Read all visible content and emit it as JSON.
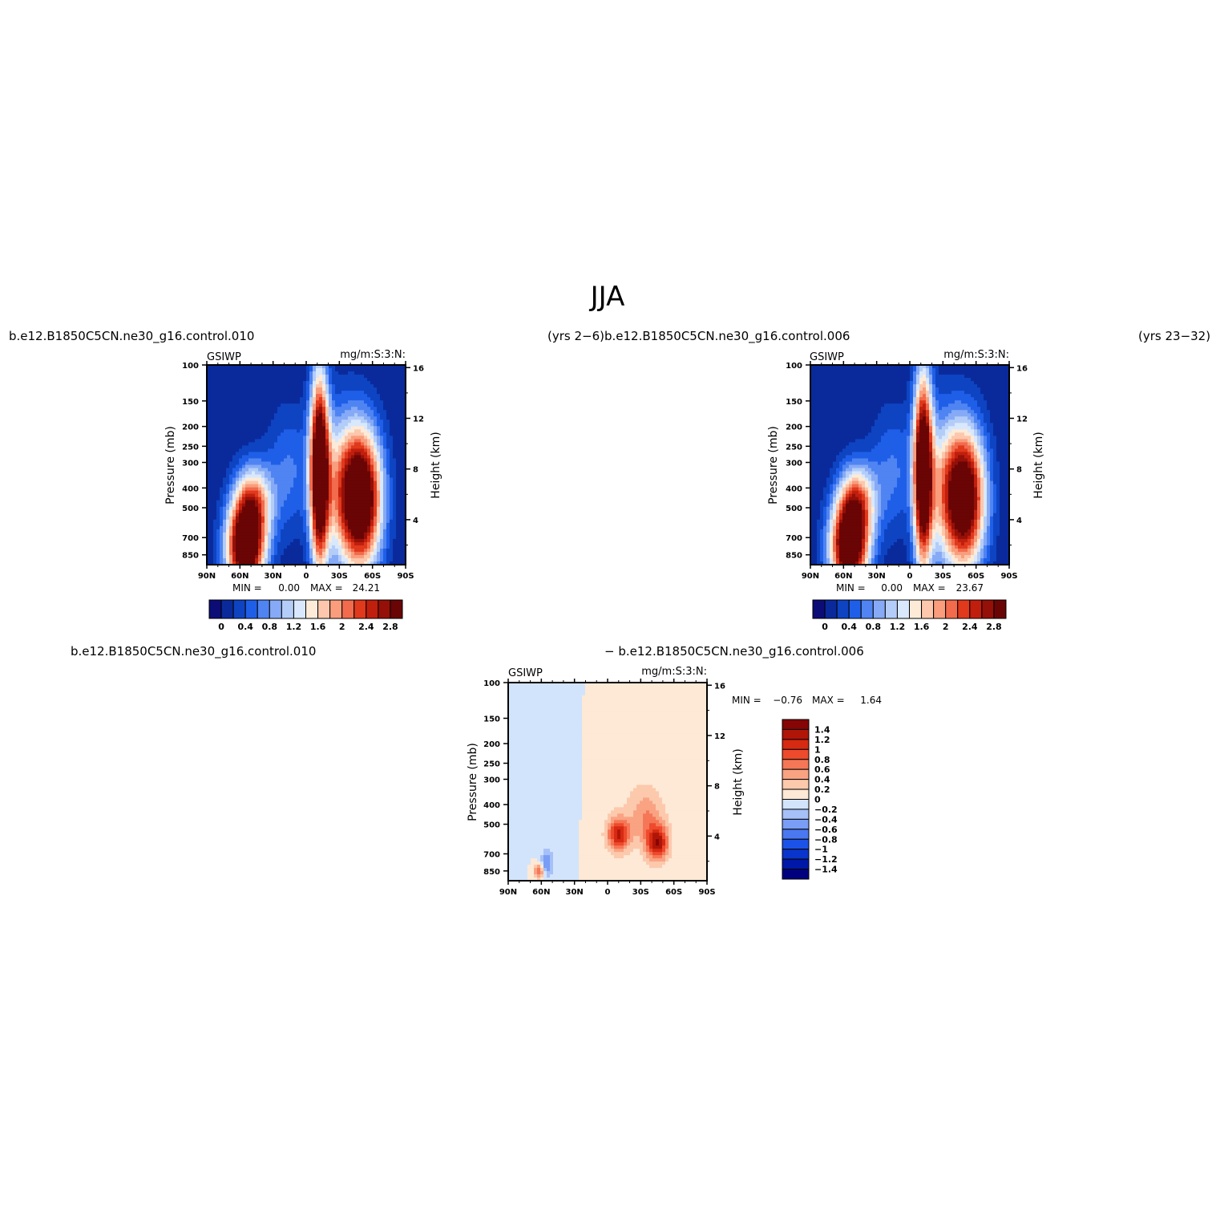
{
  "title": "JJA",
  "colors": {
    "seq": [
      "#0c0c77",
      "#0a2a9c",
      "#0e44c2",
      "#1f5fe8",
      "#4f84f2",
      "#86aaf6",
      "#b4cdf8",
      "#d9e8fc",
      "#fdebd8",
      "#fcc7ac",
      "#f99d7c",
      "#f16b4c",
      "#e0391c",
      "#c01f0e",
      "#951008",
      "#6a0505"
    ],
    "diff": [
      "#00007f",
      "#0018a8",
      "#0a35cc",
      "#1d52e8",
      "#4a78f0",
      "#7a9df5",
      "#a6c0f8",
      "#d2e4fc",
      "#fde9d5",
      "#fcc9ad",
      "#f9a383",
      "#f57757",
      "#ee4a2c",
      "#d62a12",
      "#b01508",
      "#860505"
    ],
    "background": "#0a2a9c"
  },
  "chart_data": [
    {
      "type": "heatmap",
      "panel": "top-left",
      "left_title": "b.e12.B1850C5CN.ne30_g16.control.010",
      "right_title": "(yrs 2−6)",
      "variable": "GSIWP",
      "units": "mg/m:S:3:N:",
      "xlabel": "",
      "ylabel": "Pressure (mb)",
      "y2label": "Height (km)",
      "x_ticks": [
        "90N",
        "60N",
        "30N",
        "0",
        "30S",
        "60S",
        "90S"
      ],
      "y_ticks": [
        "100",
        "150",
        "200",
        "250",
        "300",
        "400",
        "500",
        "700",
        "850"
      ],
      "y2_ticks": [
        "16",
        "12",
        "8",
        "4"
      ],
      "min_label": "MIN =",
      "min_value": "0.00",
      "max_label": "MAX =",
      "max_value": "24.21",
      "colorbar": {
        "orientation": "horizontal",
        "labels": [
          "0",
          "0.4",
          "0.8",
          "1.2",
          "1.6",
          "2",
          "2.4",
          "2.8"
        ],
        "levels": [
          0,
          0.2,
          0.4,
          0.6,
          0.8,
          1,
          1.2,
          1.4,
          1.6,
          1.8,
          2,
          2.2,
          2.4,
          2.6,
          2.8
        ]
      },
      "features": [
        {
          "lat": -50,
          "p": 450,
          "amp": 3.6,
          "wlat": 13,
          "wp": 0.55
        },
        {
          "lat": -12,
          "p": 330,
          "amp": 3.8,
          "wlat": 6,
          "wp": 0.75
        },
        {
          "lat": 55,
          "p": 790,
          "amp": 3.6,
          "wlat": 12,
          "wp": 0.35
        },
        {
          "lat": 48,
          "p": 470,
          "amp": 1.8,
          "wlat": 12,
          "wp": 0.3
        },
        {
          "lat": -30,
          "p": 400,
          "amp": 1.2,
          "wlat": 12,
          "wp": 0.6
        },
        {
          "lat": 15,
          "p": 330,
          "amp": 0.6,
          "wlat": 15,
          "wp": 0.5
        }
      ]
    },
    {
      "type": "heatmap",
      "panel": "top-right",
      "left_title": "b.e12.B1850C5CN.ne30_g16.control.006",
      "right_title": "(yrs 23−32)",
      "variable": "GSIWP",
      "units": "mg/m:S:3:N:",
      "xlabel": "",
      "ylabel": "Pressure (mb)",
      "y2label": "Height (km)",
      "x_ticks": [
        "90N",
        "60N",
        "30N",
        "0",
        "30S",
        "60S",
        "90S"
      ],
      "y_ticks": [
        "100",
        "150",
        "200",
        "250",
        "300",
        "400",
        "500",
        "700",
        "850"
      ],
      "y2_ticks": [
        "16",
        "12",
        "8",
        "4"
      ],
      "min_label": "MIN =",
      "min_value": "0.00",
      "max_label": "MAX =",
      "max_value": "23.67",
      "colorbar": {
        "orientation": "horizontal",
        "labels": [
          "0",
          "0.4",
          "0.8",
          "1.2",
          "1.6",
          "2",
          "2.4",
          "2.8"
        ],
        "levels": [
          0,
          0.2,
          0.4,
          0.6,
          0.8,
          1,
          1.2,
          1.4,
          1.6,
          1.8,
          2,
          2.2,
          2.4,
          2.6,
          2.8
        ]
      },
      "features": [
        {
          "lat": -50,
          "p": 450,
          "amp": 3.4,
          "wlat": 13,
          "wp": 0.55
        },
        {
          "lat": -12,
          "p": 330,
          "amp": 3.7,
          "wlat": 6,
          "wp": 0.75
        },
        {
          "lat": 55,
          "p": 790,
          "amp": 3.5,
          "wlat": 12,
          "wp": 0.35
        },
        {
          "lat": 48,
          "p": 470,
          "amp": 1.9,
          "wlat": 12,
          "wp": 0.3
        },
        {
          "lat": -30,
          "p": 400,
          "amp": 1.1,
          "wlat": 12,
          "wp": 0.6
        },
        {
          "lat": 15,
          "p": 330,
          "amp": 0.6,
          "wlat": 15,
          "wp": 0.5
        }
      ]
    },
    {
      "type": "heatmap",
      "panel": "bottom-difference",
      "left_title": "b.e12.B1850C5CN.ne30_g16.control.010",
      "right_title": "− b.e12.B1850C5CN.ne30_g16.control.006",
      "variable": "GSIWP",
      "units": "mg/m:S:3:N:",
      "xlabel": "",
      "ylabel": "Pressure (mb)",
      "y2label": "Height (km)",
      "x_ticks": [
        "90N",
        "60N",
        "30N",
        "0",
        "30S",
        "60S",
        "90S"
      ],
      "y_ticks": [
        "100",
        "150",
        "200",
        "250",
        "300",
        "400",
        "500",
        "700",
        "850"
      ],
      "y2_ticks": [
        "16",
        "12",
        "8",
        "4"
      ],
      "min_label": "MIN =",
      "min_value": "−0.76",
      "max_label": "MAX =",
      "max_value": "1.64",
      "colorbar": {
        "orientation": "vertical",
        "labels": [
          "1.4",
          "1.2",
          "1",
          "0.8",
          "0.6",
          "0.4",
          "0.2",
          "0",
          "−0.2",
          "−0.4",
          "−0.6",
          "−0.8",
          "−1",
          "−1.2",
          "−1.4"
        ],
        "levels": [
          -1.4,
          -1.2,
          -1,
          -0.8,
          -0.6,
          -0.4,
          -0.2,
          0,
          0.2,
          0.4,
          0.6,
          0.8,
          1,
          1.2,
          1.4
        ]
      },
      "features": [
        {
          "lat": -45,
          "p": 620,
          "amp": 1.3,
          "wlat": 7,
          "wp": 0.14
        },
        {
          "lat": -10,
          "p": 560,
          "amp": 1.2,
          "wlat": 7,
          "wp": 0.13
        },
        {
          "lat": -35,
          "p": 460,
          "amp": 0.5,
          "wlat": 10,
          "wp": 0.2
        },
        {
          "lat": -25,
          "p": 350,
          "amp": 0.12,
          "wlat": 30,
          "wp": 0.6
        },
        {
          "lat": 62,
          "p": 850,
          "amp": 0.9,
          "wlat": 3,
          "wp": 0.06
        },
        {
          "lat": 55,
          "p": 780,
          "amp": -0.6,
          "wlat": 4,
          "wp": 0.1
        },
        {
          "lat": 45,
          "p": 300,
          "amp": -0.15,
          "wlat": 12,
          "wp": 0.6
        }
      ]
    }
  ]
}
